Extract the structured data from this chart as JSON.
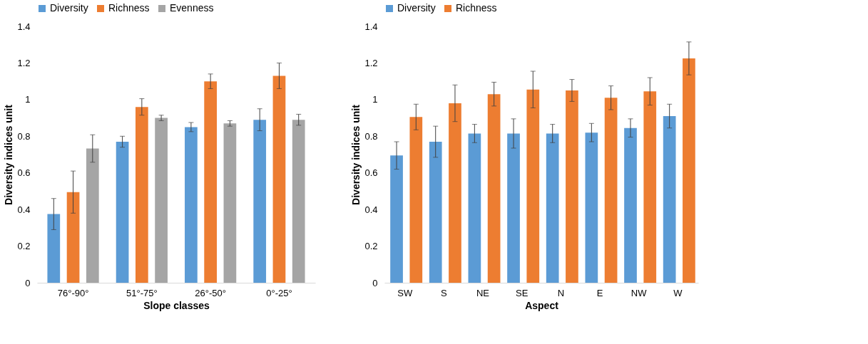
{
  "chart_data": [
    {
      "type": "bar",
      "xlabel": "Slope classes",
      "ylabel": "Diversity indices unit",
      "categories": [
        "76°-90°",
        "51°-75°",
        "26°-50°",
        "0°-25°"
      ],
      "ylim": [
        0,
        1.4
      ],
      "yticks": [
        0,
        0.2,
        0.4,
        0.6,
        0.8,
        1,
        1.2,
        1.4
      ],
      "grid": false,
      "legend": "top",
      "series": [
        {
          "name": "Diversity",
          "color": "#5b9bd5",
          "values": [
            0.375,
            0.77,
            0.85,
            0.89
          ],
          "errors": [
            0.085,
            0.03,
            0.025,
            0.06
          ]
        },
        {
          "name": "Richness",
          "color": "#ed7d31",
          "values": [
            0.495,
            0.96,
            1.1,
            1.13
          ],
          "errors": [
            0.115,
            0.045,
            0.04,
            0.07
          ]
        },
        {
          "name": "Evenness",
          "color": "#a5a5a5",
          "values": [
            0.733,
            0.9,
            0.87,
            0.89
          ],
          "errors": [
            0.075,
            0.015,
            0.015,
            0.03
          ]
        }
      ]
    },
    {
      "type": "bar",
      "xlabel": "Aspect",
      "ylabel": "Diversity indices unit",
      "categories": [
        "SW",
        "S",
        "NE",
        "SE",
        "N",
        "E",
        "NW",
        "W"
      ],
      "ylim": [
        0,
        1.4
      ],
      "yticks": [
        0,
        0.2,
        0.4,
        0.6,
        0.8,
        1,
        1.2,
        1.4
      ],
      "grid": false,
      "legend": "top",
      "series": [
        {
          "name": "Diversity",
          "color": "#5b9bd5",
          "values": [
            0.695,
            0.77,
            0.815,
            0.815,
            0.815,
            0.82,
            0.845,
            0.91
          ],
          "errors": [
            0.075,
            0.085,
            0.05,
            0.08,
            0.05,
            0.05,
            0.05,
            0.065
          ]
        },
        {
          "name": "Richness",
          "color": "#ed7d31",
          "values": [
            0.905,
            0.98,
            1.03,
            1.055,
            1.05,
            1.01,
            1.045,
            1.225
          ],
          "errors": [
            0.07,
            0.1,
            0.065,
            0.1,
            0.06,
            0.065,
            0.075,
            0.09
          ]
        }
      ]
    }
  ]
}
